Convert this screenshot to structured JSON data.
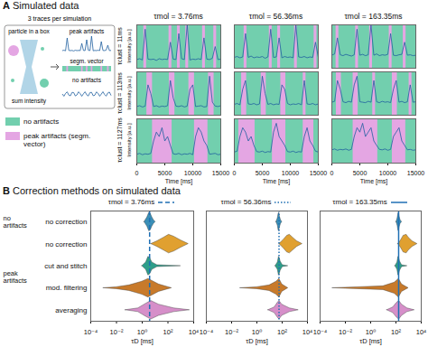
{
  "chart_data": [
    {
      "type": "line",
      "panel_label": "A",
      "title": "Simulated data",
      "diagram": {
        "caption": "3 traces per simulation",
        "box_label": "particle in a box",
        "sum_label": "sum intensity",
        "traces": [
          "peak artifacts",
          "segm. vector",
          "no artifacts"
        ]
      },
      "legend_items": [
        {
          "name": "no artifacts",
          "color": "#72cfae"
        },
        {
          "name": "peak artifacts (segm. vector)",
          "color": "#e4a6e3"
        }
      ],
      "columns": [
        "τmol = 3.76ms",
        "τmol = 56.36ms",
        "τmol = 163.35ms"
      ],
      "rows": [
        "τclust = 11ms",
        "τclust = 113ms",
        "τclust = 1127ms"
      ],
      "xlabel": "Time [ms]",
      "ylabel": "Intensity [a.u.]",
      "xlim": [
        0,
        15000
      ],
      "xticks": [
        0,
        5000,
        10000,
        15000
      ],
      "ylim": [
        0,
        10
      ],
      "tick_labels": "x",
      "color": "#1f5f9f",
      "x": [
        0,
        500,
        1000,
        1500,
        2000,
        2500,
        3000,
        3500,
        4000,
        4500,
        5000,
        5500,
        6000,
        6500,
        7000,
        7500,
        8000,
        8500,
        9000,
        9500,
        10000,
        10500,
        11000,
        11500,
        12000,
        12500,
        13000,
        13500,
        14000,
        14500,
        15000
      ],
      "panels": [
        {
          "row": 0,
          "col": 0,
          "values": [
            2,
            2.2,
            1.9,
            9,
            2.1,
            2,
            2.1,
            1.8,
            2.2,
            2,
            2.1,
            2,
            6,
            2.1,
            2,
            8,
            2.2,
            2,
            10,
            1.9,
            2.1,
            2,
            2.2,
            2,
            7,
            2.1,
            2,
            2.3,
            5,
            2,
            2.1
          ],
          "artifact_segments": [
            [
              1250,
              1750
            ],
            [
              5750,
              6250
            ],
            [
              7250,
              7750
            ],
            [
              8750,
              9250
            ],
            [
              11750,
              12250
            ],
            [
              13750,
              14250
            ]
          ]
        },
        {
          "row": 0,
          "col": 1,
          "values": [
            2.5,
            2.7,
            2.4,
            2.6,
            8,
            2.5,
            2.8,
            2.4,
            2.6,
            2.5,
            2.7,
            2.3,
            2.6,
            9,
            2.5,
            2.6,
            7,
            2.4,
            2.7,
            2.5,
            2.6,
            2.4,
            10,
            2.6,
            2.5,
            2.7,
            2.4,
            2.6,
            2.5,
            6,
            2.5
          ],
          "artifact_segments": [
            [
              1750,
              2250
            ],
            [
              6250,
              6750
            ],
            [
              7750,
              8250
            ],
            [
              10750,
              11250
            ],
            [
              14250,
              14750
            ]
          ]
        },
        {
          "row": 0,
          "col": 2,
          "values": [
            3,
            3.3,
            7,
            3.1,
            2.9,
            3.2,
            3,
            2.8,
            3.1,
            9,
            3,
            3.2,
            2.9,
            3.1,
            10,
            3,
            3.3,
            2.9,
            3.1,
            3,
            3.2,
            8,
            3,
            2.9,
            3.1,
            3.2,
            6,
            3,
            3.1,
            2.9,
            3
          ],
          "artifact_segments": [
            [
              750,
              1250
            ],
            [
              4250,
              4750
            ],
            [
              6750,
              7250
            ],
            [
              10250,
              10750
            ],
            [
              12750,
              13250
            ]
          ]
        },
        {
          "row": 1,
          "col": 0,
          "values": [
            2,
            2.2,
            1.9,
            2.1,
            7,
            5,
            2,
            2.2,
            1.9,
            2.1,
            2,
            2.2,
            8,
            4,
            2.1,
            2,
            2.2,
            1.9,
            2.1,
            6,
            7,
            2,
            2.1,
            2.2,
            1.9,
            2,
            9,
            3,
            2.1,
            2,
            2.2
          ],
          "artifact_segments": [
            [
              1800,
              2800
            ],
            [
              5800,
              6800
            ],
            [
              9300,
              10300
            ],
            [
              12800,
              13800
            ]
          ]
        },
        {
          "row": 1,
          "col": 1,
          "values": [
            2.5,
            2.7,
            2.4,
            6,
            8,
            2.6,
            2.5,
            2.7,
            2.4,
            2.6,
            9,
            5,
            2.5,
            2.7,
            2.4,
            2.6,
            2.5,
            7,
            6,
            2.7,
            2.4,
            2.6,
            2.5,
            2.7,
            2.4,
            8,
            2.6,
            2.5,
            2.7,
            2.4,
            2.6
          ],
          "artifact_segments": [
            [
              1300,
              2200
            ],
            [
              4800,
              5700
            ],
            [
              8300,
              9200
            ],
            [
              12300,
              12800
            ]
          ]
        },
        {
          "row": 1,
          "col": 2,
          "values": [
            3,
            3.2,
            8,
            6,
            3.1,
            2.9,
            3.2,
            3,
            7,
            9,
            3.1,
            3,
            2.9,
            3.2,
            3,
            8,
            3.1,
            2.9,
            3.2,
            3,
            3.1,
            2.9,
            6,
            8,
            3,
            3.2,
            2.9,
            3.1,
            7,
            3,
            3.1
          ],
          "artifact_segments": [
            [
              800,
              1700
            ],
            [
              3800,
              4700
            ],
            [
              7300,
              7800
            ],
            [
              10800,
              11700
            ],
            [
              13800,
              14300
            ]
          ]
        },
        {
          "row": 2,
          "col": 0,
          "values": [
            2,
            2.2,
            1.9,
            2.1,
            2,
            2.2,
            5,
            7,
            6,
            8,
            5,
            6,
            4,
            2.1,
            2,
            2.2,
            1.9,
            2.1,
            2,
            2.2,
            1.9,
            6,
            8,
            7,
            5,
            4,
            2,
            2.1,
            2.2,
            1.9,
            2
          ],
          "artifact_segments": [
            [
              2800,
              6300
            ],
            [
              10300,
              12700
            ]
          ]
        },
        {
          "row": 2,
          "col": 1,
          "values": [
            2.5,
            2.7,
            6,
            8,
            7,
            5,
            6,
            4,
            2.6,
            2.5,
            2.7,
            2.4,
            2.6,
            2.5,
            7,
            9,
            6,
            5,
            4,
            2.6,
            2.5,
            2.7,
            2.4,
            2.6,
            2.5,
            6,
            8,
            5,
            4,
            2.7,
            2.5
          ],
          "artifact_segments": [
            [
              800,
              3700
            ],
            [
              6800,
              9200
            ],
            [
              12300,
              14200
            ]
          ]
        },
        {
          "row": 2,
          "col": 2,
          "values": [
            3,
            3.2,
            2.9,
            3.1,
            3,
            3.2,
            2.9,
            3.1,
            6,
            8,
            7,
            9,
            6,
            7,
            8,
            5,
            4,
            3.1,
            3,
            3.2,
            2.9,
            3.1,
            6,
            7,
            8,
            5,
            4,
            3,
            3.1,
            2.9,
            3
          ],
          "artifact_segments": [
            [
              3800,
              8200
            ],
            [
              10800,
              13200
            ]
          ]
        }
      ]
    },
    {
      "type": "violin",
      "panel_label": "B",
      "title": "Correction methods on simulated data",
      "xlabel": "τD [ms]",
      "log": "x",
      "xlim": [
        0.0001,
        10000
      ],
      "xticks": [
        {
          "value": 0.0001,
          "label": "10⁻⁴"
        },
        {
          "value": 0.01,
          "label": "10⁻²"
        },
        {
          "value": 1,
          "label": "10⁰"
        },
        {
          "value": 100,
          "label": "10²"
        },
        {
          "value": 10000,
          "label": "10⁴"
        }
      ],
      "series": [
        {
          "name": "no correction",
          "group": "no artifacts",
          "color": "#3a8fb7"
        },
        {
          "name": "no correction",
          "group": "peak artifacts",
          "color": "#e0a030"
        },
        {
          "name": "cut and stitch",
          "group": "peak artifacts",
          "color": "#2e9e8a"
        },
        {
          "name": "mod. filtering",
          "group": "peak artifacts",
          "color": "#c87a2a"
        },
        {
          "name": "averaging",
          "group": "peak artifacts",
          "color": "#d68fc9"
        }
      ],
      "reference_color": "#1f6fb4",
      "panels": [
        {
          "title": "τmol = 3.76ms",
          "tau_mol": 3.76,
          "line_style": "dashed",
          "violins": [
            {
              "tau": [
                1.5,
                2.5,
                3.5,
                4.5,
                6,
                8,
                11
              ],
              "density": [
                0,
                0.5,
                1,
                0.9,
                0.5,
                0.2,
                0
              ]
            },
            {
              "tau": [
                5,
                15,
                50,
                120,
                300,
                1000,
                4000
              ],
              "density": [
                0,
                0.3,
                0.7,
                1,
                0.8,
                0.4,
                0
              ]
            },
            {
              "tau": [
                1,
                2,
                3,
                4,
                6,
                15,
                1000
              ],
              "density": [
                0,
                0.4,
                1,
                0.9,
                0.4,
                0.1,
                0
              ]
            },
            {
              "tau": [
                0.001,
                0.01,
                0.1,
                1,
                3,
                20,
                200
              ],
              "density": [
                0,
                0.1,
                0.3,
                0.7,
                1,
                0.4,
                0
              ]
            },
            {
              "tau": [
                0.05,
                0.5,
                2,
                5,
                20,
                300,
                5000
              ],
              "density": [
                0,
                0.2,
                0.7,
                1,
                0.6,
                0.2,
                0
              ]
            }
          ]
        },
        {
          "title": "τmol = 56.36ms",
          "tau_mol": 56.36,
          "line_style": "dotted",
          "violins": [
            {
              "tau": [
                35,
                45,
                52,
                58,
                65,
                80,
                100
              ],
              "density": [
                0,
                0.4,
                0.9,
                1,
                0.6,
                0.2,
                0
              ]
            },
            {
              "tau": [
                60,
                120,
                250,
                400,
                700,
                1500,
                4000
              ],
              "density": [
                0,
                0.4,
                0.9,
                1,
                0.7,
                0.3,
                0
              ]
            },
            {
              "tau": [
                30,
                45,
                55,
                62,
                75,
                110,
                300
              ],
              "density": [
                0,
                0.4,
                1,
                0.9,
                0.5,
                0.1,
                0
              ]
            },
            {
              "tau": [
                0.05,
                1,
                10,
                35,
                60,
                100,
                300
              ],
              "density": [
                0,
                0.1,
                0.3,
                0.7,
                1,
                0.4,
                0
              ]
            },
            {
              "tau": [
                8,
                25,
                45,
                60,
                100,
                400,
                2000
              ],
              "density": [
                0,
                0.3,
                0.8,
                1,
                0.6,
                0.2,
                0
              ]
            }
          ]
        },
        {
          "title": "τmol = 163.35ms",
          "tau_mol": 163.35,
          "line_style": "solid",
          "violins": [
            {
              "tau": [
                110,
                135,
                155,
                170,
                190,
                230,
                300
              ],
              "density": [
                0,
                0.4,
                0.9,
                1,
                0.6,
                0.2,
                0
              ]
            },
            {
              "tau": [
                150,
                250,
                400,
                700,
                1000,
                2000,
                5000
              ],
              "density": [
                0,
                0.4,
                0.9,
                1,
                0.7,
                0.3,
                0
              ]
            },
            {
              "tau": [
                90,
                130,
                155,
                175,
                210,
                300,
                800
              ],
              "density": [
                0,
                0.4,
                1,
                0.9,
                0.5,
                0.1,
                0
              ]
            },
            {
              "tau": [
                0.001,
                0.1,
                10,
                80,
                170,
                300,
                1000
              ],
              "density": [
                0,
                0.1,
                0.2,
                0.6,
                1,
                0.4,
                0
              ]
            },
            {
              "tau": [
                20,
                60,
                120,
                180,
                300,
                800,
                3000
              ],
              "density": [
                0,
                0.3,
                0.8,
                1,
                0.6,
                0.2,
                0
              ]
            }
          ]
        }
      ]
    }
  ]
}
